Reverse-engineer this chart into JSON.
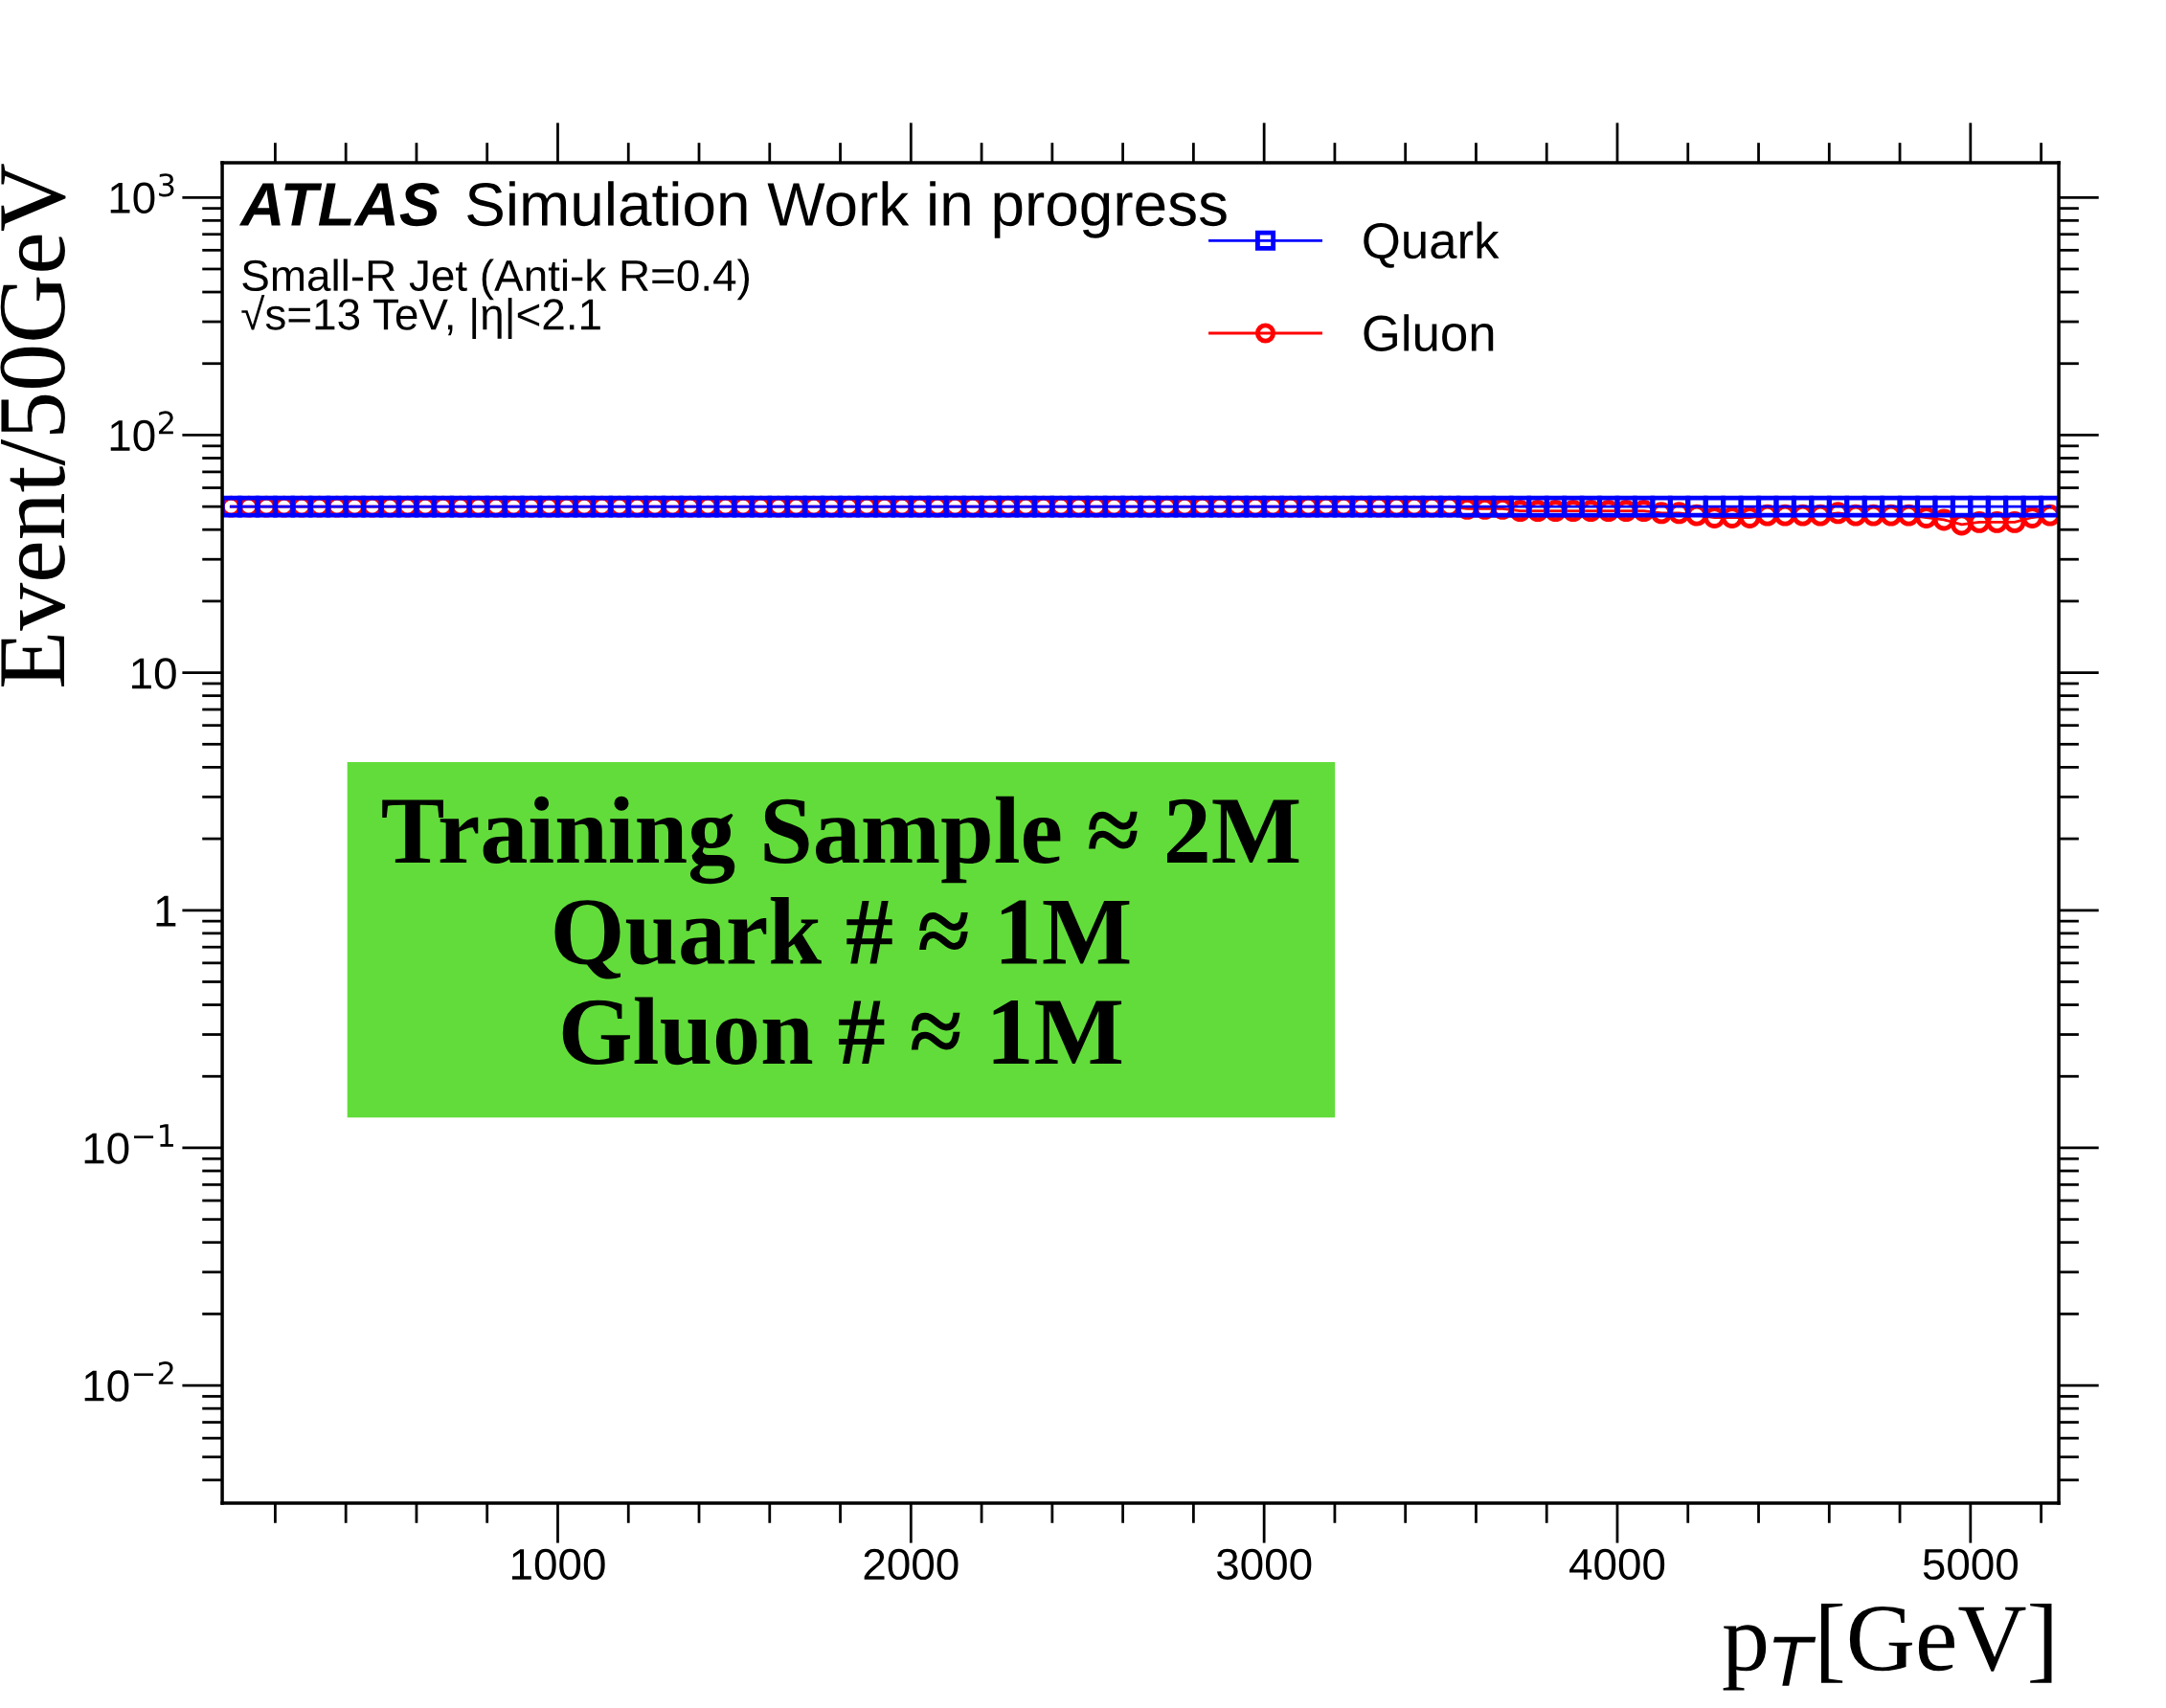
{
  "chart_data": {
    "type": "line",
    "xlabel": "p$_{T}$[GeV]",
    "ylabel": "Event/50GeV",
    "x": [
      75,
      125,
      175,
      225,
      275,
      325,
      375,
      425,
      475,
      525,
      575,
      625,
      675,
      725,
      775,
      825,
      875,
      925,
      975,
      1025,
      1075,
      1125,
      1175,
      1225,
      1275,
      1325,
      1375,
      1425,
      1475,
      1525,
      1575,
      1625,
      1675,
      1725,
      1775,
      1825,
      1875,
      1925,
      1975,
      2025,
      2075,
      2125,
      2175,
      2225,
      2275,
      2325,
      2375,
      2425,
      2475,
      2525,
      2575,
      2625,
      2675,
      2725,
      2775,
      2825,
      2875,
      2925,
      2975,
      3025,
      3075,
      3125,
      3175,
      3225,
      3275,
      3325,
      3375,
      3425,
      3475,
      3525,
      3575,
      3625,
      3675,
      3725,
      3775,
      3825,
      3875,
      3925,
      3975,
      4025,
      4075,
      4125,
      4175,
      4225,
      4275,
      4325,
      4375,
      4425,
      4475,
      4525,
      4575,
      4625,
      4675,
      4725,
      4775,
      4825,
      4875,
      4925,
      4975,
      5025,
      5075,
      5125,
      5175,
      5225
    ],
    "series": [
      {
        "name": "Gluon",
        "color": "#ff0000",
        "marker": "circle",
        "values": [
          50,
          50,
          50,
          50,
          50,
          50,
          50,
          50,
          50,
          50,
          50,
          50,
          50,
          50,
          50,
          50,
          50,
          50,
          50,
          50,
          50,
          50,
          50,
          50,
          50,
          50,
          50,
          50,
          50,
          50,
          50,
          50,
          50,
          50,
          50,
          50,
          50,
          50,
          50,
          50,
          50,
          50,
          50,
          50,
          50,
          50,
          50,
          50,
          50,
          50,
          50,
          50,
          50,
          50,
          50,
          50,
          50,
          50,
          50,
          50,
          50,
          50,
          50,
          50,
          50,
          50,
          50,
          50,
          50,
          50,
          49,
          49,
          49,
          48,
          48,
          48,
          48,
          48,
          48,
          48,
          48,
          47,
          47,
          46,
          45,
          45,
          45,
          46,
          46,
          46,
          46,
          47,
          46,
          46,
          46,
          46,
          45,
          44,
          42,
          43,
          43,
          43,
          45,
          46
        ]
      },
      {
        "name": "Quark",
        "color": "#0000ff",
        "marker": "square",
        "values": [
          50,
          50,
          50,
          50,
          50,
          50,
          50,
          50,
          50,
          50,
          50,
          50,
          50,
          50,
          50,
          50,
          50,
          50,
          50,
          50,
          50,
          50,
          50,
          50,
          50,
          50,
          50,
          50,
          50,
          50,
          50,
          50,
          50,
          50,
          50,
          50,
          50,
          50,
          50,
          50,
          50,
          50,
          50,
          50,
          50,
          50,
          50,
          50,
          50,
          50,
          50,
          50,
          50,
          50,
          50,
          50,
          50,
          50,
          50,
          50,
          50,
          50,
          50,
          50,
          50,
          50,
          50,
          50,
          50,
          50,
          50,
          50,
          50,
          50,
          50,
          50,
          50,
          50,
          50,
          50,
          50,
          50,
          50,
          50,
          50,
          50,
          50,
          50,
          50,
          50,
          50,
          50,
          50,
          50,
          50,
          50,
          50,
          50,
          50,
          50,
          50,
          50,
          50,
          50
        ]
      }
    ],
    "log": "y",
    "xlim": [
      50,
      5250
    ],
    "ylim": [
      0.0032,
      1400
    ],
    "xticks": [
      1000,
      2000,
      3000,
      4000,
      5000
    ],
    "yticks": [
      {
        "value": 0.01,
        "label": "10$^{−2}$"
      },
      {
        "value": 0.1,
        "label": "10$^{−1}$"
      },
      1,
      10,
      {
        "value": 100,
        "label": "10$^{2}$"
      },
      {
        "value": 1000,
        "label": "10$^{3}$"
      }
    ],
    "legend": "top right",
    "grid": false,
    "annotations": [
      "ATLAS",
      "Simulation Work in progress",
      "Small-R Jet (Anti-k R=0.4)",
      "√s=13 TeV, |η|<2.1",
      "Training Sample ≈ 2M\nQuark # ≈ 1M\nGluon # ≈ 1M"
    ]
  }
}
